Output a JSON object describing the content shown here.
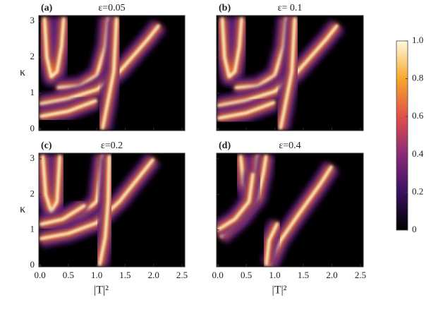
{
  "chart_data": [
    {
      "type": "density",
      "panel": "(a)",
      "title": "ε=0.05",
      "xlim": [
        -0.02,
        2.55
      ],
      "ylim": [
        -0.04,
        3.16
      ],
      "yticks": [
        0,
        1,
        2,
        3
      ],
      "ylabel": "κ"
    },
    {
      "type": "density",
      "panel": "(b)",
      "title": "ε= 0.1",
      "xlim": [
        -0.02,
        2.55
      ],
      "ylim": [
        -0.04,
        3.16
      ]
    },
    {
      "type": "density",
      "panel": "(c)",
      "title": "ε=0.2",
      "xlim": [
        -0.02,
        2.55
      ],
      "ylim": [
        -0.04,
        3.16
      ],
      "yticks": [
        0,
        1,
        2,
        3
      ],
      "ylabel": "κ",
      "xticks": [
        {
          "value": 0,
          "label": "0.0"
        },
        {
          "value": 0.5,
          "label": "0.5"
        },
        {
          "value": 1,
          "label": "1.0"
        },
        {
          "value": 1.5,
          "label": "1.5"
        },
        {
          "value": 2,
          "label": "2.0"
        },
        {
          "value": 2.5,
          "label": "2.5"
        }
      ],
      "xlabel": "|T|²"
    },
    {
      "type": "density",
      "panel": "(d)",
      "title": "ε=0.4",
      "xlim": [
        -0.02,
        2.55
      ],
      "ylim": [
        -0.04,
        3.16
      ],
      "xticks": [
        {
          "value": 0,
          "label": "0.0"
        },
        {
          "value": 0.5,
          "label": "0.5"
        },
        {
          "value": 1,
          "label": "1.0"
        },
        {
          "value": 1.5,
          "label": "1.5"
        },
        {
          "value": 2,
          "label": "2.0"
        },
        {
          "value": 2.5,
          "label": "2.5"
        }
      ],
      "xlabel": "|T|²"
    },
    {
      "type": "colorbar",
      "ylim": [
        0,
        1
      ],
      "yticks": [
        0,
        0.2,
        0.4,
        0.6,
        0.8,
        {
          "value": 1,
          "label": "1.0"
        }
      ]
    }
  ]
}
